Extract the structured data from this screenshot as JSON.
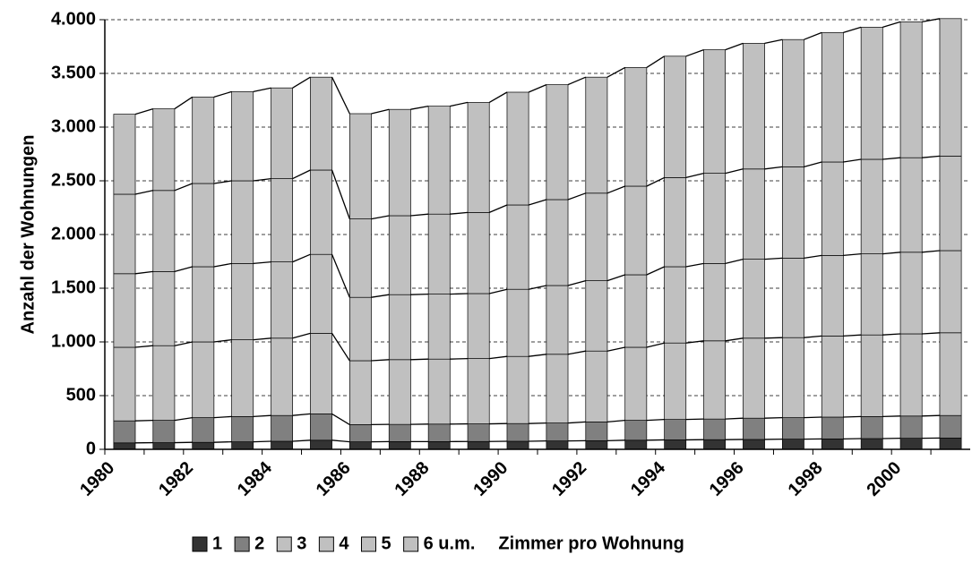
{
  "chart_data": {
    "type": "stacked_bar",
    "y_label": "Anzahl der Wohnungen",
    "legend_title": "Zimmer pro Wohnung",
    "categories": [
      "1980",
      null,
      "1982",
      null,
      "1984",
      null,
      "1986",
      null,
      "1988",
      null,
      "1990",
      null,
      "1992",
      null,
      "1994",
      null,
      "1996",
      null,
      "1998",
      null,
      "2000",
      null
    ],
    "series": [
      {
        "name": "1",
        "color": "#333333",
        "values": [
          60,
          62,
          65,
          70,
          75,
          85,
          70,
          72,
          72,
          73,
          75,
          78,
          80,
          85,
          88,
          90,
          92,
          95,
          97,
          100,
          103,
          105
        ]
      },
      {
        "name": "2",
        "color": "#808080",
        "values": [
          205,
          208,
          230,
          235,
          240,
          245,
          160,
          160,
          163,
          164,
          165,
          167,
          175,
          185,
          190,
          192,
          198,
          200,
          203,
          205,
          207,
          210
        ]
      },
      {
        "name": "3",
        "color": "#c0c0c0",
        "values": [
          685,
          695,
          705,
          715,
          720,
          750,
          595,
          603,
          605,
          608,
          625,
          640,
          660,
          680,
          712,
          728,
          745,
          745,
          755,
          760,
          765,
          770
        ]
      },
      {
        "name": "4",
        "color": "#c0c0c0",
        "values": [
          685,
          690,
          700,
          710,
          710,
          735,
          590,
          605,
          605,
          605,
          625,
          640,
          655,
          675,
          710,
          720,
          735,
          740,
          750,
          755,
          760,
          765
        ]
      },
      {
        "name": "5",
        "color": "#c0c0c0",
        "values": [
          740,
          755,
          775,
          770,
          775,
          785,
          730,
          735,
          745,
          755,
          785,
          800,
          815,
          825,
          830,
          840,
          840,
          850,
          870,
          880,
          880,
          880
        ]
      },
      {
        "name": "6 u.m.",
        "color": "#c0c0c0",
        "values": [
          745,
          760,
          805,
          830,
          845,
          865,
          980,
          990,
          1005,
          1025,
          1050,
          1070,
          1080,
          1105,
          1130,
          1150,
          1170,
          1185,
          1205,
          1230,
          1265,
          1280
        ]
      }
    ],
    "ylim": [
      0,
      4000
    ],
    "yticks": [
      0,
      500,
      {
        "value": 1000,
        "label": "1.000"
      },
      {
        "value": 1500,
        "label": "1.500"
      },
      {
        "value": 2000,
        "label": "2.000"
      },
      {
        "value": 2500,
        "label": "2.500"
      },
      {
        "value": 3000,
        "label": "3.000"
      },
      {
        "value": 3500,
        "label": "3.500"
      },
      {
        "value": 4000,
        "label": "4.000"
      }
    ],
    "grid": true
  }
}
